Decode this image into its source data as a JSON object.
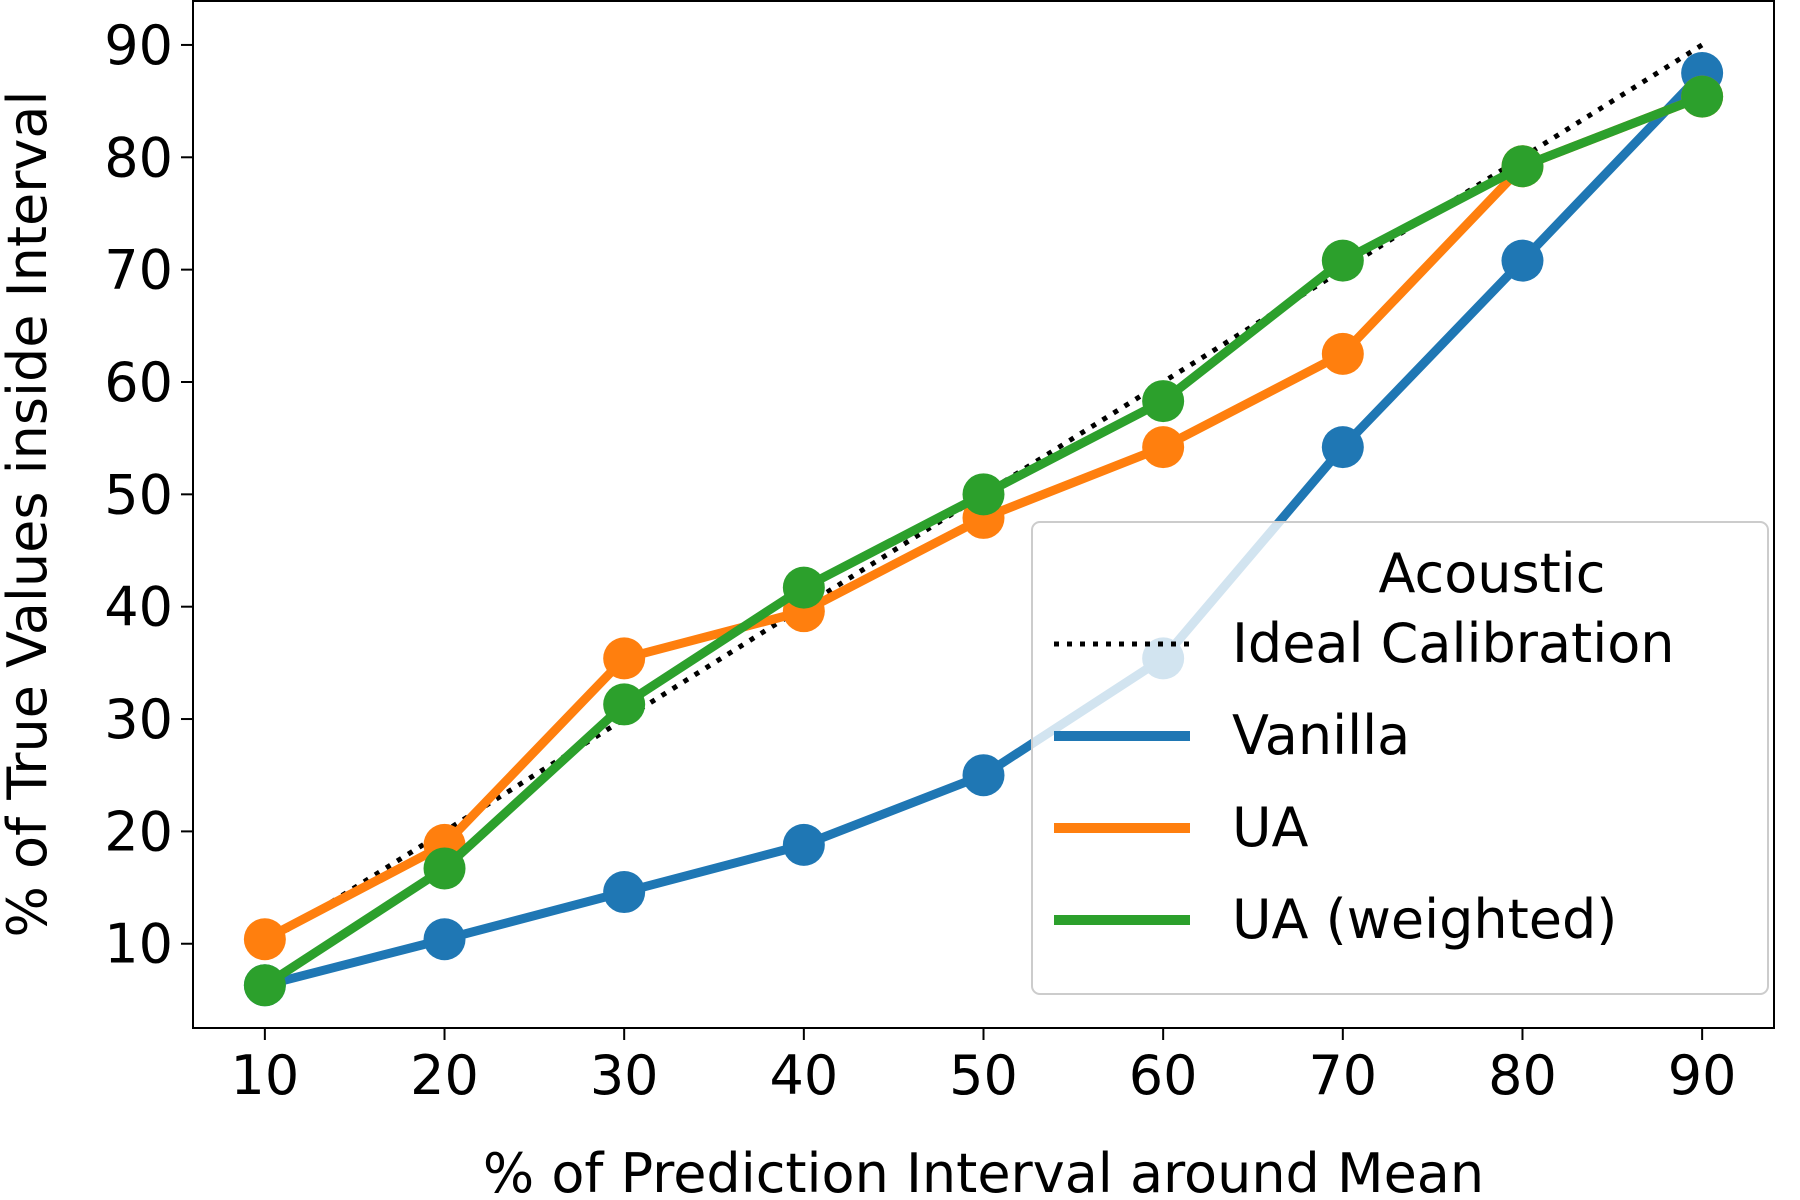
{
  "chart_data": {
    "type": "line",
    "xlabel": "% of Prediction Interval around Mean",
    "ylabel": "% of True Values inside Interval",
    "x": [
      10,
      20,
      30,
      40,
      50,
      60,
      70,
      80,
      90
    ],
    "xticks": [
      "10",
      "20",
      "30",
      "40",
      "50",
      "60",
      "70",
      "80",
      "90"
    ],
    "yticks": [
      "10",
      "20",
      "30",
      "40",
      "50",
      "60",
      "70",
      "80",
      "90"
    ],
    "xlim": [
      6,
      94
    ],
    "ylim": [
      2.5,
      94
    ],
    "legend": {
      "title": "Acoustic",
      "placement": "lower right"
    },
    "ideal": {
      "name": "Ideal Calibration",
      "color": "#000000",
      "values": [
        10,
        20,
        30,
        40,
        50,
        60,
        70,
        80,
        90
      ]
    },
    "series": [
      {
        "name": "Vanilla",
        "color": "#1f77b4",
        "values": [
          6.3,
          10.4,
          14.6,
          18.8,
          25.0,
          35.4,
          54.2,
          70.8,
          87.5
        ]
      },
      {
        "name": "UA",
        "color": "#ff7f0e",
        "values": [
          10.4,
          18.8,
          35.4,
          39.6,
          47.9,
          54.2,
          62.5,
          79.2,
          85.4
        ]
      },
      {
        "name": "UA (weighted)",
        "color": "#2ca02c",
        "values": [
          6.3,
          16.7,
          31.3,
          41.7,
          50.0,
          58.3,
          70.8,
          79.2,
          85.4
        ]
      }
    ]
  }
}
